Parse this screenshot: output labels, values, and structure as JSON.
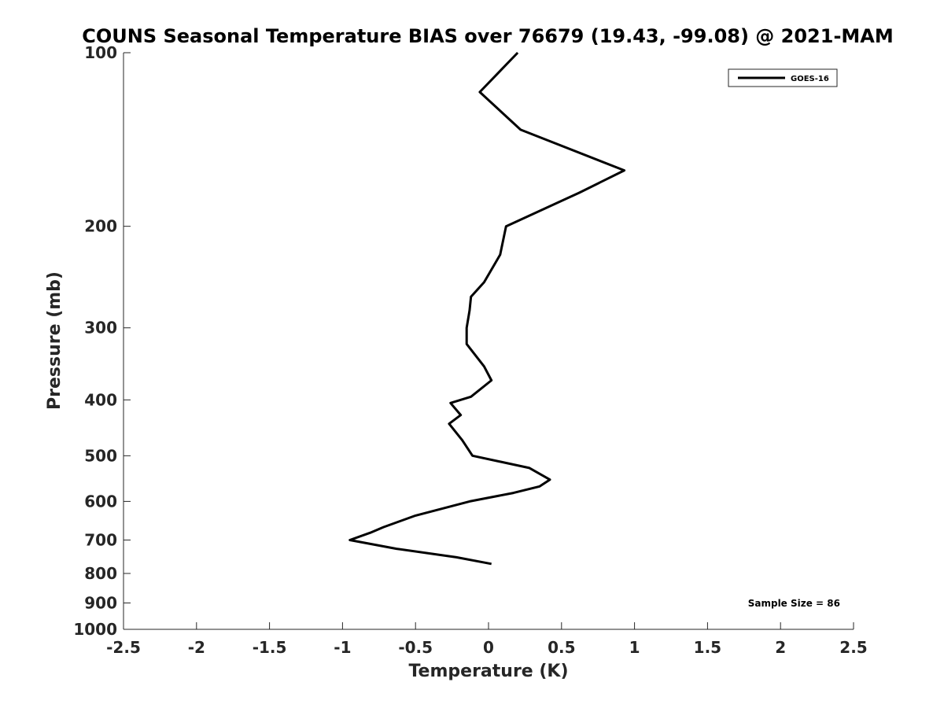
{
  "chart_data": {
    "type": "line",
    "title": "COUNS Seasonal Temperature BIAS over 76679 (19.43, -99.08) @ 2021-MAM",
    "xlabel": "Temperature (K)",
    "ylabel": "Pressure (mb)",
    "xlim": [
      -2.5,
      2.5
    ],
    "ylim": [
      100,
      1000
    ],
    "y_scale": "log",
    "y_direction": "reversed",
    "grid": false,
    "x_ticks": [
      -2.5,
      -2,
      -1.5,
      -1,
      -0.5,
      0,
      0.5,
      1,
      1.5,
      2,
      2.5
    ],
    "x_tick_labels": [
      "-2.5",
      "-2",
      "-1.5",
      "-1",
      "-0.5",
      "0",
      "0.5",
      "1",
      "1.5",
      "2",
      "2.5"
    ],
    "y_ticks": [
      100,
      200,
      300,
      400,
      500,
      600,
      700,
      800,
      900,
      1000
    ],
    "y_tick_labels": [
      "100",
      "200",
      "300",
      "400",
      "500",
      "600",
      "700",
      "800",
      "900",
      "1000"
    ],
    "legend": {
      "position": "top-right",
      "entries": [
        "GOES-16"
      ]
    },
    "annotation": "Sample Size = 86",
    "series": [
      {
        "name": "GOES-16",
        "color": "#000000",
        "points": [
          {
            "x": 0.2,
            "p": 100
          },
          {
            "x": -0.06,
            "p": 117
          },
          {
            "x": 0.22,
            "p": 136
          },
          {
            "x": 0.93,
            "p": 160
          },
          {
            "x": 0.62,
            "p": 175
          },
          {
            "x": 0.12,
            "p": 200
          },
          {
            "x": 0.08,
            "p": 224
          },
          {
            "x": -0.03,
            "p": 250
          },
          {
            "x": -0.12,
            "p": 265
          },
          {
            "x": -0.13,
            "p": 280
          },
          {
            "x": -0.15,
            "p": 300
          },
          {
            "x": -0.15,
            "p": 320
          },
          {
            "x": -0.03,
            "p": 350
          },
          {
            "x": 0.02,
            "p": 370
          },
          {
            "x": -0.12,
            "p": 395
          },
          {
            "x": -0.26,
            "p": 405
          },
          {
            "x": -0.19,
            "p": 425
          },
          {
            "x": -0.27,
            "p": 440
          },
          {
            "x": -0.18,
            "p": 470
          },
          {
            "x": -0.11,
            "p": 500
          },
          {
            "x": 0.28,
            "p": 525
          },
          {
            "x": 0.42,
            "p": 550
          },
          {
            "x": 0.35,
            "p": 565
          },
          {
            "x": 0.17,
            "p": 580
          },
          {
            "x": -0.13,
            "p": 600
          },
          {
            "x": -0.5,
            "p": 635
          },
          {
            "x": -0.72,
            "p": 665
          },
          {
            "x": -0.81,
            "p": 680
          },
          {
            "x": -0.95,
            "p": 700
          },
          {
            "x": -0.63,
            "p": 725
          },
          {
            "x": -0.22,
            "p": 750
          },
          {
            "x": 0.02,
            "p": 770
          }
        ]
      }
    ]
  }
}
